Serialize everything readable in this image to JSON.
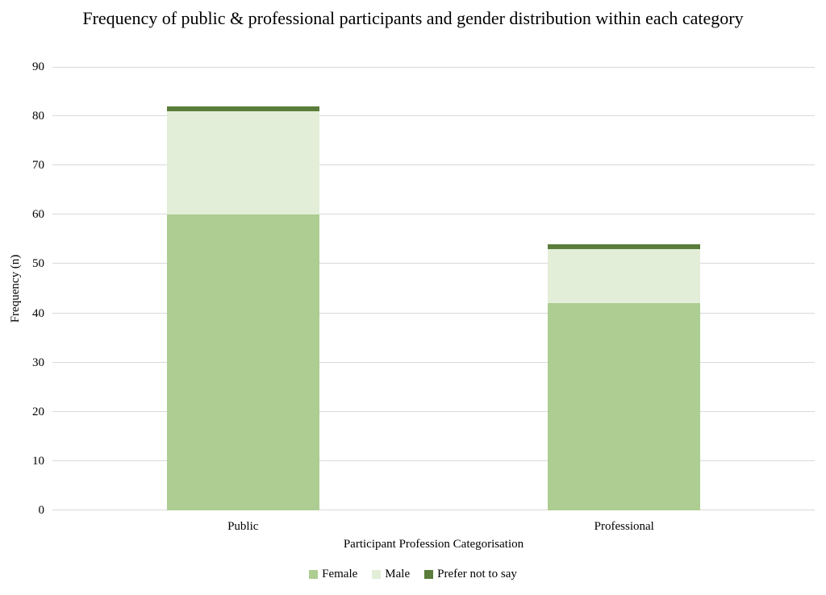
{
  "chart_data": {
    "type": "bar",
    "stacked": true,
    "title": "Frequency of public & professional participants and gender distribution within each category",
    "xlabel": "Participant Profession Categorisation",
    "ylabel": "Frequency (n)",
    "categories": [
      "Public",
      "Professional"
    ],
    "series": [
      {
        "name": "Female",
        "color": "#aecd92",
        "values": [
          60,
          42
        ]
      },
      {
        "name": "Male",
        "color": "#e3eed8",
        "values": [
          21,
          11
        ]
      },
      {
        "name": "Prefer not to say",
        "color": "#5a7d3b",
        "values": [
          1,
          1
        ]
      }
    ],
    "totals": [
      82,
      54
    ],
    "ylim": [
      0,
      90
    ],
    "yticks": [
      0,
      10,
      20,
      30,
      40,
      50,
      60,
      70,
      80,
      90
    ],
    "grid": true,
    "gridline_color": "#d9d9d9",
    "legend_position": "bottom",
    "background": "#ffffff",
    "text_color": "#000000"
  }
}
